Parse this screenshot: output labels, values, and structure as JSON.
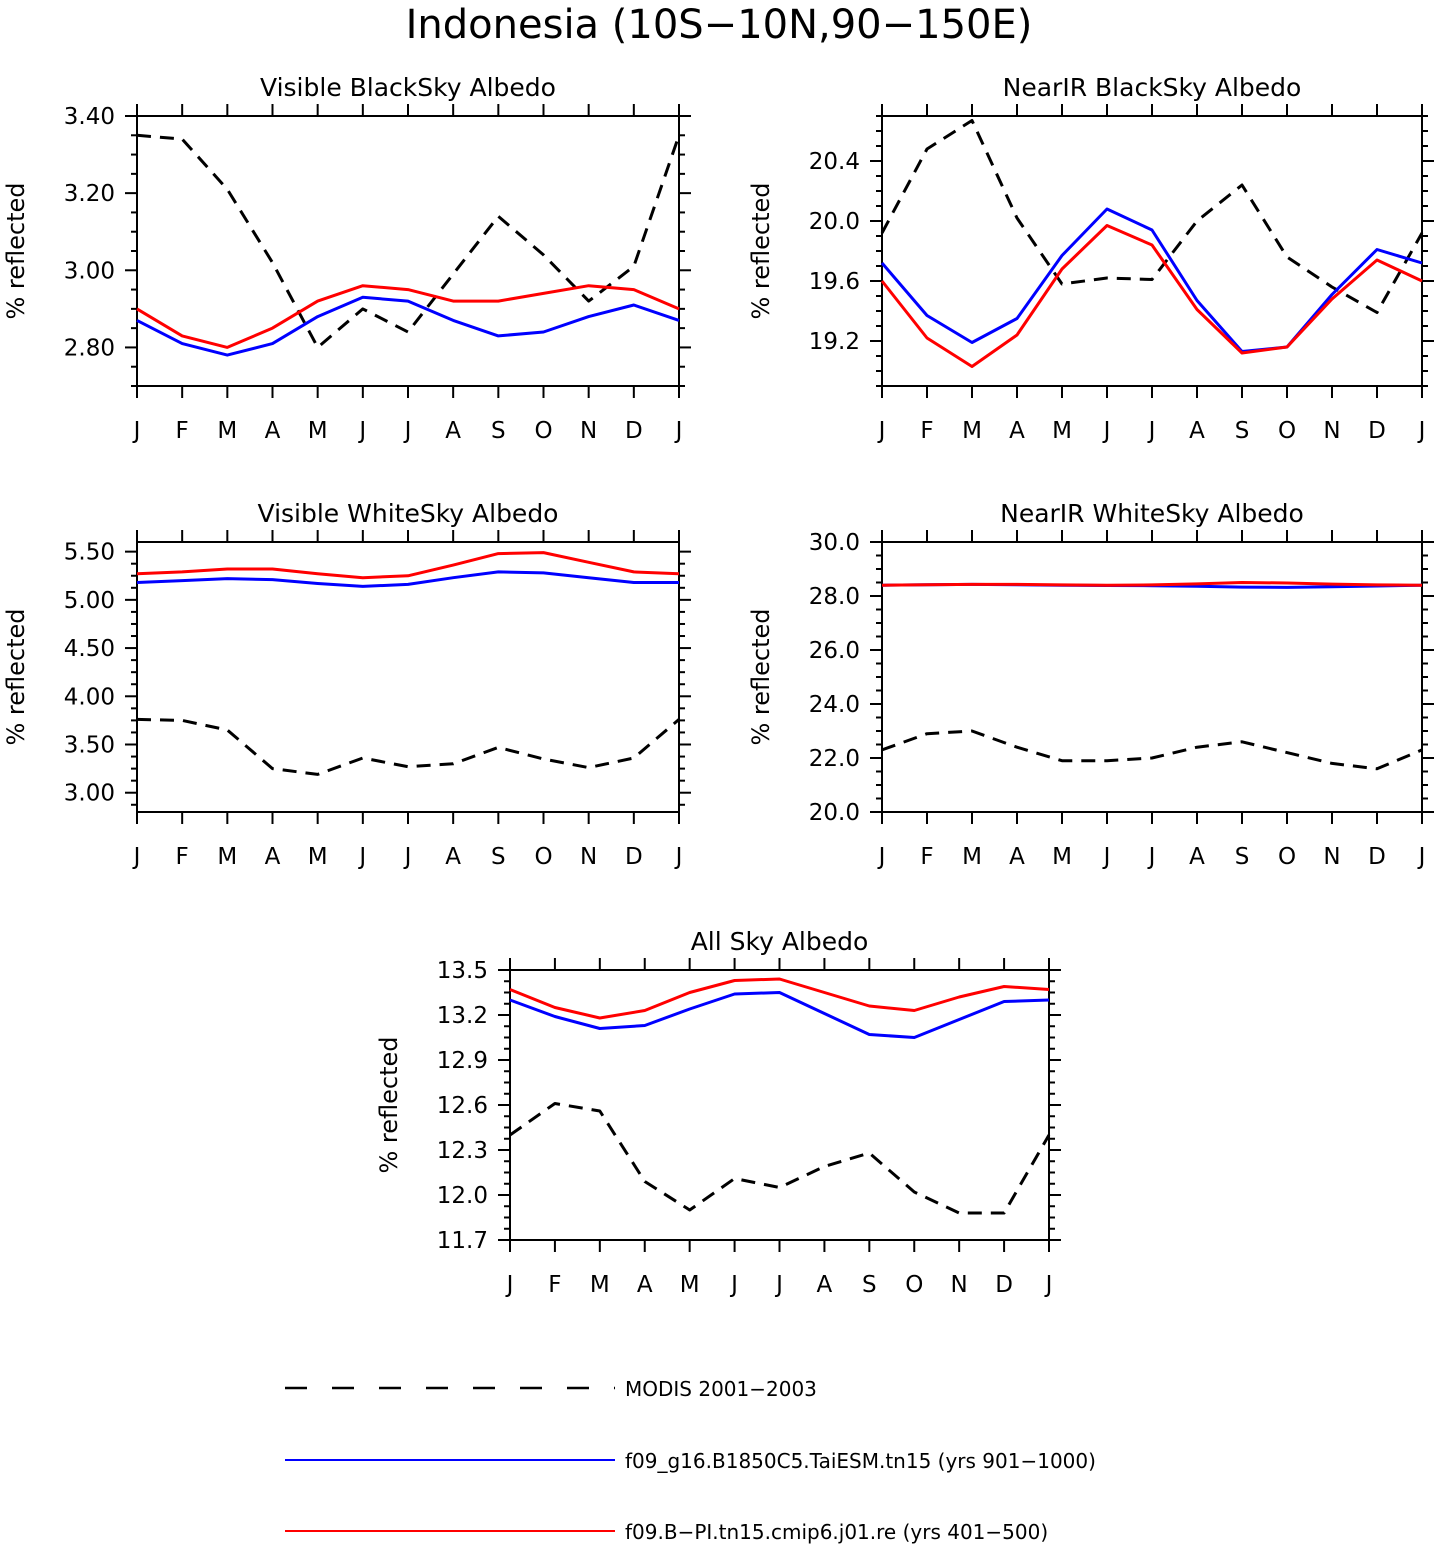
{
  "figure_title": "Indonesia (10S−10N,90−150E)",
  "legend": [
    {
      "label": "MODIS 2001−2003",
      "color": "#000000",
      "dash": true
    },
    {
      "label": "f09_g16.B1850C5.TaiESM.tn15 (yrs 901−1000)",
      "color": "#0000ff",
      "dash": false
    },
    {
      "label": "f09.B−PI.tn15.cmip6.j01.re (yrs 401−500)",
      "color": "#ff0000",
      "dash": false
    }
  ],
  "chart_data": [
    {
      "type": "line",
      "title": "Visible BlackSky Albedo",
      "ylabel": "% reflected",
      "categories": [
        "J",
        "F",
        "M",
        "A",
        "M",
        "J",
        "J",
        "A",
        "S",
        "O",
        "N",
        "D",
        "J"
      ],
      "ylim": [
        2.7,
        3.4
      ],
      "yticks": [
        "2.80",
        "3.00",
        "3.20",
        "3.40"
      ],
      "series": [
        {
          "name": "MODIS 2001−2003",
          "color": "#000000",
          "dash": true,
          "values": [
            3.35,
            3.34,
            3.21,
            3.02,
            2.8,
            2.9,
            2.84,
            2.99,
            3.14,
            3.04,
            2.92,
            3.01,
            3.35
          ]
        },
        {
          "name": "f09_g16.B1850C5.TaiESM.tn15 (yrs 901−1000)",
          "color": "#0000ff",
          "dash": false,
          "values": [
            2.87,
            2.81,
            2.78,
            2.81,
            2.88,
            2.93,
            2.92,
            2.87,
            2.83,
            2.84,
            2.88,
            2.91,
            2.87
          ]
        },
        {
          "name": "f09.B−PI.tn15.cmip6.j01.re (yrs 401−500)",
          "color": "#ff0000",
          "dash": false,
          "values": [
            2.9,
            2.83,
            2.8,
            2.85,
            2.92,
            2.96,
            2.95,
            2.92,
            2.92,
            2.94,
            2.96,
            2.95,
            2.9
          ]
        }
      ]
    },
    {
      "type": "line",
      "title": "NearIR BlackSky Albedo",
      "ylabel": "% reflected",
      "categories": [
        "J",
        "F",
        "M",
        "A",
        "M",
        "J",
        "J",
        "A",
        "S",
        "O",
        "N",
        "D",
        "J"
      ],
      "ylim": [
        18.9,
        20.7
      ],
      "yticks": [
        "19.2",
        "19.6",
        "20.0",
        "20.4"
      ],
      "series": [
        {
          "name": "MODIS 2001−2003",
          "color": "#000000",
          "dash": true,
          "values": [
            19.92,
            20.48,
            20.67,
            20.02,
            19.58,
            19.62,
            19.61,
            20.0,
            20.24,
            19.76,
            19.56,
            19.39,
            19.92
          ]
        },
        {
          "name": "f09_g16.B1850C5.TaiESM.tn15 (yrs 901−1000)",
          "color": "#0000ff",
          "dash": false,
          "values": [
            19.72,
            19.37,
            19.19,
            19.35,
            19.77,
            20.08,
            19.94,
            19.47,
            19.13,
            19.16,
            19.51,
            19.81,
            19.72
          ]
        },
        {
          "name": "f09.B−PI.tn15.cmip6.j01.re (yrs 401−500)",
          "color": "#ff0000",
          "dash": false,
          "values": [
            19.6,
            19.22,
            19.03,
            19.24,
            19.68,
            19.97,
            19.84,
            19.41,
            19.12,
            19.16,
            19.48,
            19.74,
            19.6
          ]
        }
      ]
    },
    {
      "type": "line",
      "title": "Visible WhiteSky Albedo",
      "ylabel": "% reflected",
      "categories": [
        "J",
        "F",
        "M",
        "A",
        "M",
        "J",
        "J",
        "A",
        "S",
        "O",
        "N",
        "D",
        "J"
      ],
      "ylim": [
        2.8,
        5.6
      ],
      "yticks": [
        "3.00",
        "3.50",
        "4.00",
        "4.50",
        "5.00",
        "5.50"
      ],
      "series": [
        {
          "name": "MODIS 2001−2003",
          "color": "#000000",
          "dash": true,
          "values": [
            3.76,
            3.75,
            3.65,
            3.25,
            3.19,
            3.36,
            3.27,
            3.3,
            3.47,
            3.35,
            3.26,
            3.36,
            3.76
          ]
        },
        {
          "name": "f09_g16.B1850C5.TaiESM.tn15 (yrs 901−1000)",
          "color": "#0000ff",
          "dash": false,
          "values": [
            5.18,
            5.2,
            5.22,
            5.21,
            5.17,
            5.14,
            5.16,
            5.23,
            5.29,
            5.28,
            5.23,
            5.18,
            5.18
          ]
        },
        {
          "name": "f09.B−PI.tn15.cmip6.j01.re (yrs 401−500)",
          "color": "#ff0000",
          "dash": false,
          "values": [
            5.27,
            5.29,
            5.32,
            5.32,
            5.27,
            5.23,
            5.25,
            5.36,
            5.48,
            5.49,
            5.39,
            5.29,
            5.27
          ]
        }
      ]
    },
    {
      "type": "line",
      "title": "NearIR WhiteSky Albedo",
      "ylabel": "% reflected",
      "categories": [
        "J",
        "F",
        "M",
        "A",
        "M",
        "J",
        "J",
        "A",
        "S",
        "O",
        "N",
        "D",
        "J"
      ],
      "ylim": [
        20.0,
        30.0
      ],
      "yticks": [
        "20.0",
        "22.0",
        "24.0",
        "26.0",
        "28.0",
        "30.0"
      ],
      "series": [
        {
          "name": "MODIS 2001−2003",
          "color": "#000000",
          "dash": true,
          "values": [
            22.3,
            22.9,
            23.0,
            22.4,
            21.9,
            21.9,
            22.0,
            22.4,
            22.6,
            22.2,
            21.8,
            21.6,
            22.3
          ]
        },
        {
          "name": "f09_g16.B1850C5.TaiESM.tn15 (yrs 901−1000)",
          "color": "#0000ff",
          "dash": false,
          "values": [
            28.4,
            28.42,
            28.43,
            28.42,
            28.4,
            28.39,
            28.38,
            28.36,
            28.33,
            28.32,
            28.34,
            28.37,
            28.4
          ]
        },
        {
          "name": "f09.B−PI.tn15.cmip6.j01.re (yrs 401−500)",
          "color": "#ff0000",
          "dash": false,
          "values": [
            28.4,
            28.42,
            28.43,
            28.43,
            28.41,
            28.4,
            28.41,
            28.45,
            28.5,
            28.48,
            28.44,
            28.41,
            28.4
          ]
        }
      ]
    },
    {
      "type": "line",
      "title": "All Sky Albedo",
      "ylabel": "% reflected",
      "categories": [
        "J",
        "F",
        "M",
        "A",
        "M",
        "J",
        "J",
        "A",
        "S",
        "O",
        "N",
        "D",
        "J"
      ],
      "ylim": [
        11.7,
        13.5
      ],
      "yticks": [
        "11.7",
        "12.0",
        "12.3",
        "12.6",
        "12.9",
        "13.2",
        "13.5"
      ],
      "series": [
        {
          "name": "MODIS 2001−2003",
          "color": "#000000",
          "dash": true,
          "values": [
            12.4,
            12.61,
            12.56,
            12.09,
            11.9,
            12.11,
            12.05,
            12.19,
            12.28,
            12.02,
            11.88,
            11.88,
            12.4
          ]
        },
        {
          "name": "f09_g16.B1850C5.TaiESM.tn15 (yrs 901−1000)",
          "color": "#0000ff",
          "dash": false,
          "values": [
            13.3,
            13.19,
            13.11,
            13.13,
            13.24,
            13.34,
            13.35,
            13.21,
            13.07,
            13.05,
            13.17,
            13.29,
            13.3
          ]
        },
        {
          "name": "f09.B−PI.tn15.cmip6.j01.re (yrs 401−500)",
          "color": "#ff0000",
          "dash": false,
          "values": [
            13.37,
            13.25,
            13.18,
            13.23,
            13.35,
            13.43,
            13.44,
            13.35,
            13.26,
            13.23,
            13.32,
            13.39,
            13.37
          ]
        }
      ]
    }
  ]
}
